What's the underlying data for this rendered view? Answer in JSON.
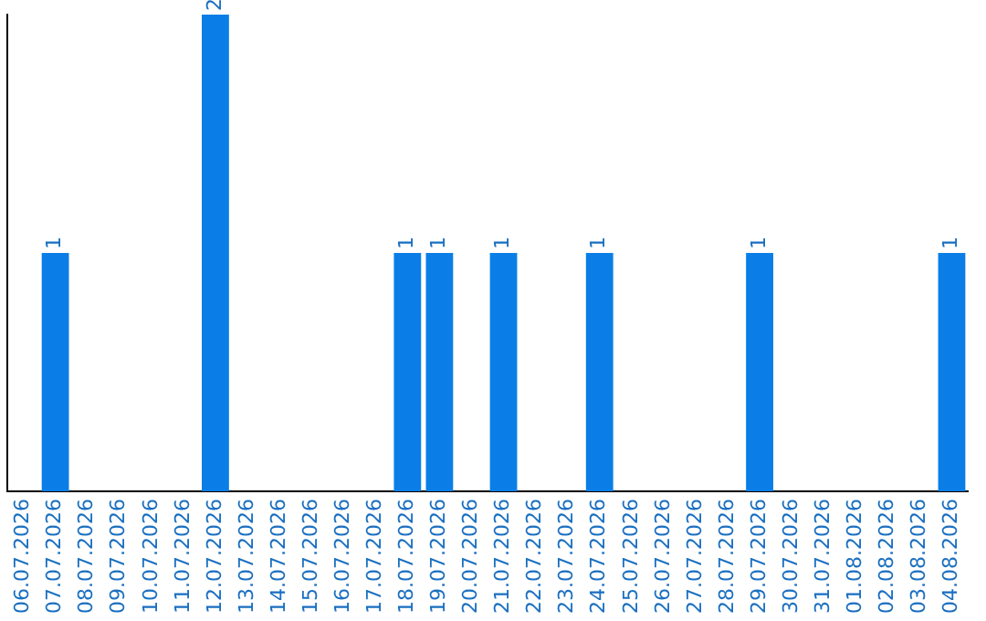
{
  "chart_data": {
    "type": "bar",
    "categories": [
      "06.07.2026",
      "07.07.2026",
      "08.07.2026",
      "09.07.2026",
      "10.07.2026",
      "11.07.2026",
      "12.07.2026",
      "13.07.2026",
      "14.07.2026",
      "15.07.2026",
      "16.07.2026",
      "17.07.2026",
      "18.07.2026",
      "19.07.2026",
      "20.07.2026",
      "21.07.2026",
      "22.07.2026",
      "23.07.2026",
      "24.07.2026",
      "25.07.2026",
      "26.07.2026",
      "27.07.2026",
      "28.07.2026",
      "29.07.2026",
      "30.07.2026",
      "31.07.2026",
      "01.08.2026",
      "02.08.2026",
      "03.08.2026",
      "04.08.2026"
    ],
    "values": [
      0,
      1,
      0,
      0,
      0,
      0,
      2,
      0,
      0,
      0,
      0,
      0,
      1,
      1,
      0,
      1,
      0,
      0,
      1,
      0,
      0,
      0,
      0,
      1,
      0,
      0,
      0,
      0,
      0,
      1
    ],
    "value_labels": [
      null,
      "1",
      null,
      null,
      null,
      null,
      "2",
      null,
      null,
      null,
      null,
      null,
      "1",
      "1",
      null,
      "1",
      null,
      null,
      "1",
      null,
      null,
      null,
      null,
      "1",
      null,
      null,
      null,
      null,
      null,
      "1"
    ],
    "color": "#0a7ee6",
    "ylim": [
      0,
      2
    ],
    "tick_labels": "x",
    "grid": false,
    "legend": false
  }
}
